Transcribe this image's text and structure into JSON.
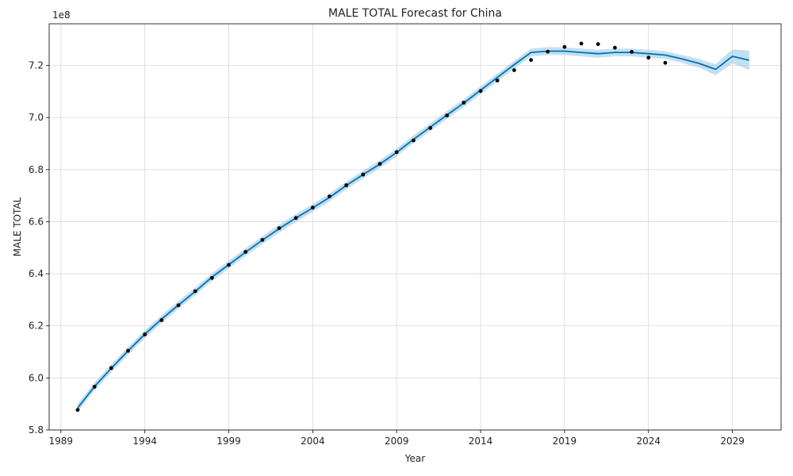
{
  "chart_data": {
    "type": "line",
    "title": "MALE TOTAL Forecast for China",
    "xlabel": "Year",
    "ylabel": "MALE TOTAL",
    "y_multiplier_label": "1e8",
    "xlim": [
      1988.3,
      2031.9
    ],
    "ylim": [
      5.8,
      7.36
    ],
    "x_ticks": [
      1989,
      1994,
      1999,
      2004,
      2009,
      2014,
      2019,
      2024,
      2029
    ],
    "y_ticks": [
      5.8,
      6.0,
      6.2,
      6.4,
      6.6,
      6.8,
      7.0,
      7.2
    ],
    "y_tick_labels": [
      "5.8",
      "6.0",
      "6.2",
      "6.4",
      "6.6",
      "6.8",
      "7.0",
      "7.2"
    ],
    "grid": true,
    "colors": {
      "forecast": "#0072B2",
      "band": "#9ccae6",
      "observed": "#000000",
      "grid": "#d9d9d9"
    },
    "observed": {
      "x": [
        1990,
        1991,
        1992,
        1993,
        1994,
        1995,
        1996,
        1997,
        1998,
        1999,
        2000,
        2001,
        2002,
        2003,
        2004,
        2005,
        2006,
        2007,
        2008,
        2009,
        2010,
        2011,
        2012,
        2013,
        2014,
        2015,
        2016,
        2017,
        2018,
        2019,
        2020,
        2021,
        2022,
        2023,
        2024,
        2025
      ],
      "y": [
        5.877,
        5.966,
        6.038,
        6.104,
        6.167,
        6.222,
        6.279,
        6.333,
        6.384,
        6.434,
        6.484,
        6.53,
        6.575,
        6.614,
        6.654,
        6.697,
        6.74,
        6.781,
        6.822,
        6.867,
        6.912,
        6.96,
        7.008,
        7.057,
        7.102,
        7.142,
        7.182,
        7.221,
        7.253,
        7.271,
        7.284,
        7.282,
        7.268,
        7.252,
        7.23,
        7.21
      ]
    },
    "forecast": {
      "x": [
        1990,
        1991,
        1992,
        1993,
        1994,
        1995,
        1996,
        1997,
        1998,
        1999,
        2000,
        2001,
        2002,
        2003,
        2004,
        2005,
        2006,
        2007,
        2008,
        2009,
        2010,
        2011,
        2012,
        2013,
        2014,
        2015,
        2016,
        2017,
        2018,
        2019,
        2020,
        2021,
        2022,
        2023,
        2024,
        2025,
        2026,
        2027,
        2028,
        2029,
        2030
      ],
      "yhat": [
        5.885,
        5.967,
        6.037,
        6.104,
        6.168,
        6.226,
        6.28,
        6.332,
        6.387,
        6.435,
        6.483,
        6.529,
        6.573,
        6.614,
        6.653,
        6.693,
        6.739,
        6.781,
        6.821,
        6.866,
        6.916,
        6.963,
        7.01,
        7.056,
        7.105,
        7.154,
        7.203,
        7.25,
        7.255,
        7.255,
        7.25,
        7.245,
        7.25,
        7.25,
        7.245,
        7.24,
        7.225,
        7.208,
        7.185,
        7.235,
        7.22
      ],
      "lower": [
        5.87,
        5.952,
        6.022,
        6.089,
        6.153,
        6.211,
        6.265,
        6.317,
        6.372,
        6.42,
        6.468,
        6.514,
        6.558,
        6.599,
        6.638,
        6.678,
        6.724,
        6.766,
        6.806,
        6.851,
        6.901,
        6.948,
        6.995,
        7.041,
        7.09,
        7.139,
        7.188,
        7.235,
        7.24,
        7.24,
        7.235,
        7.23,
        7.235,
        7.235,
        7.23,
        7.225,
        7.21,
        7.192,
        7.163,
        7.208,
        7.183
      ],
      "upper": [
        5.9,
        5.982,
        6.052,
        6.119,
        6.183,
        6.241,
        6.295,
        6.347,
        6.402,
        6.45,
        6.498,
        6.544,
        6.588,
        6.629,
        6.668,
        6.708,
        6.754,
        6.796,
        6.836,
        6.881,
        6.931,
        6.978,
        7.025,
        7.071,
        7.12,
        7.169,
        7.218,
        7.265,
        7.27,
        7.27,
        7.265,
        7.26,
        7.265,
        7.265,
        7.26,
        7.255,
        7.24,
        7.225,
        7.205,
        7.262,
        7.257
      ]
    }
  }
}
